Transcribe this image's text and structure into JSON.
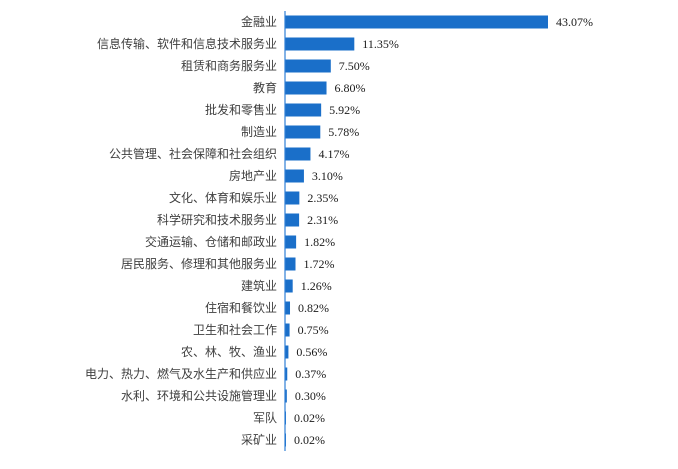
{
  "chart_data": {
    "type": "bar",
    "orientation": "horizontal",
    "title": "",
    "xlabel": "",
    "ylabel": "",
    "xlim": [
      0,
      43.07
    ],
    "grid": false,
    "legend": "none",
    "bar_color": "#1a6fc9",
    "axis_color": "#2f7fd6",
    "categories": [
      "金融业",
      "信息传输、软件和信息技术服务业",
      "租赁和商务服务业",
      "教育",
      "批发和零售业",
      "制造业",
      "公共管理、社会保障和社会组织",
      "房地产业",
      "文化、体育和娱乐业",
      "科学研究和技术服务业",
      "交通运输、仓储和邮政业",
      "居民服务、修理和其他服务业",
      "建筑业",
      "住宿和餐饮业",
      "卫生和社会工作",
      "农、林、牧、渔业",
      "电力、热力、燃气及水生产和供应业",
      "水利、环境和公共设施管理业",
      "军队",
      "采矿业"
    ],
    "values": [
      43.07,
      11.35,
      7.5,
      6.8,
      5.92,
      5.78,
      4.17,
      3.1,
      2.35,
      2.31,
      1.82,
      1.72,
      1.26,
      0.82,
      0.75,
      0.56,
      0.37,
      0.3,
      0.02,
      0.02
    ],
    "value_labels": [
      "43.07%",
      "11.35%",
      "7.50%",
      "6.80%",
      "5.92%",
      "5.78%",
      "4.17%",
      "3.10%",
      "2.35%",
      "2.31%",
      "1.82%",
      "1.72%",
      "1.26%",
      "0.82%",
      "0.75%",
      "0.56%",
      "0.37%",
      "0.30%",
      "0.02%",
      "0.02%"
    ]
  }
}
